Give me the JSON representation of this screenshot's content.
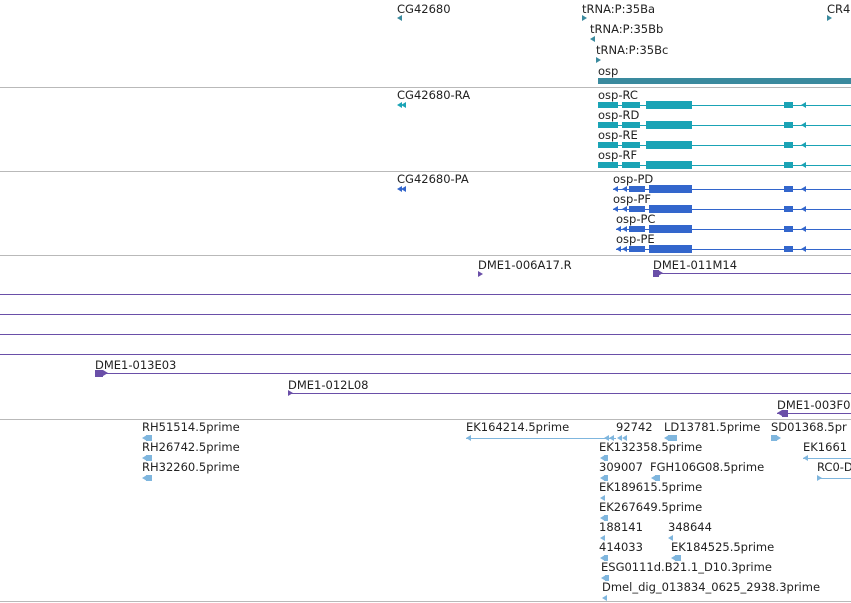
{
  "colors": {
    "gene": "#3a8a9e",
    "rna": "#1aa3b5",
    "protein": "#3366cc",
    "clone": "#6a4fa8",
    "est": "#7fb6de",
    "divider": "#b9b9b9"
  },
  "gene_track": {
    "labels": [
      "CG42680",
      "tRNA:P:35Ba",
      "tRNA:P:35Bb",
      "tRNA:P:35Bc",
      "osp",
      "CR4"
    ]
  },
  "transcript_track": {
    "labels": [
      "CG42680-RA",
      "osp-RC",
      "osp-RD",
      "osp-RE",
      "osp-RF"
    ]
  },
  "protein_track": {
    "labels": [
      "CG42680-PA",
      "osp-PD",
      "osp-PF",
      "osp-PC",
      "osp-PE"
    ]
  },
  "clone_track": {
    "labels": [
      "DME1-006A17.R",
      "DME1-011M14",
      "DME1-013E03",
      "DME1-012L08",
      "DME1-003F0"
    ]
  },
  "est_track": {
    "labels": [
      "RH51514.5prime",
      "RH26742.5prime",
      "RH32260.5prime",
      "EK164214.5prime",
      "92742",
      "LD13781.5prime",
      "SD01368.5pr",
      "EK132358.5prime",
      "EK1661",
      "309007",
      "FGH106G08.5prime",
      "RC0-D",
      "EK189615.5prime",
      "EK267649.5prime",
      "188141",
      "348644",
      "414033",
      "EK184525.5prime",
      "ESG0111d.B21.1_D10.3prime",
      "Dmel_dig_013834_0625_2938.3prime"
    ]
  }
}
